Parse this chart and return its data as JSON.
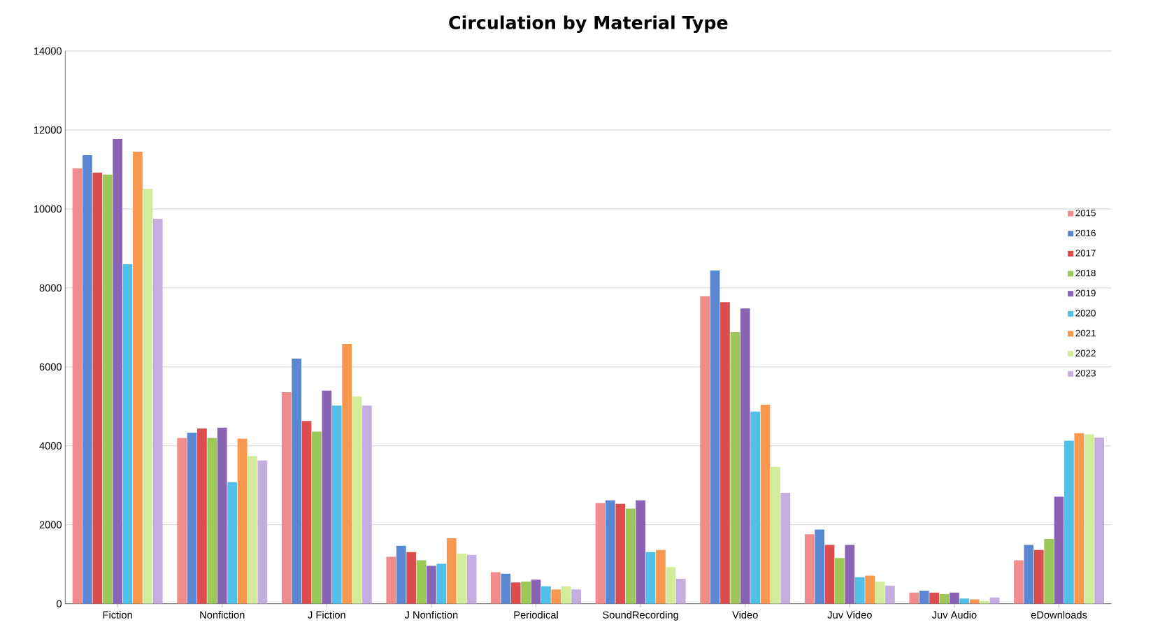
{
  "chart_data": {
    "type": "bar",
    "title": "Circulation by Material Type",
    "categories": [
      "Fiction",
      "Nonfiction",
      "J Fiction",
      "J Nonfiction",
      "Periodical",
      "SoundRecording",
      "Video",
      "Juv Video",
      "Juv Audio",
      "eDownloads"
    ],
    "series": [
      {
        "name": "2015",
        "color": "#f08c8c",
        "values": [
          11030,
          4200,
          5360,
          1190,
          800,
          2550,
          7790,
          1760,
          280,
          1100
        ]
      },
      {
        "name": "2016",
        "color": "#5a86d2",
        "values": [
          11360,
          4330,
          6210,
          1470,
          760,
          2620,
          8440,
          1880,
          330,
          1490
        ]
      },
      {
        "name": "2017",
        "color": "#dc4e4e",
        "values": [
          10920,
          4440,
          4630,
          1310,
          540,
          2530,
          7640,
          1490,
          280,
          1360
        ]
      },
      {
        "name": "2018",
        "color": "#9cc85a",
        "values": [
          10870,
          4200,
          4360,
          1100,
          560,
          2410,
          6880,
          1160,
          240,
          1640
        ]
      },
      {
        "name": "2019",
        "color": "#8a64b4",
        "values": [
          11770,
          4460,
          5400,
          960,
          610,
          2620,
          7480,
          1490,
          280,
          2710
        ]
      },
      {
        "name": "2020",
        "color": "#50c0e6",
        "values": [
          8600,
          3080,
          5020,
          1010,
          440,
          1310,
          4870,
          670,
          130,
          4130
        ]
      },
      {
        "name": "2021",
        "color": "#f7984e",
        "values": [
          11450,
          4180,
          6580,
          1660,
          360,
          1360,
          5040,
          710,
          110,
          4320
        ]
      },
      {
        "name": "2022",
        "color": "#d2ec9c",
        "values": [
          10510,
          3740,
          5250,
          1270,
          440,
          930,
          3470,
          560,
          70,
          4290
        ]
      },
      {
        "name": "2023",
        "color": "#c4aee0",
        "values": [
          9750,
          3630,
          5020,
          1240,
          360,
          630,
          2810,
          460,
          160,
          4210
        ]
      }
    ],
    "ylim": [
      0,
      14000
    ],
    "yticks": [
      0,
      2000,
      4000,
      6000,
      8000,
      10000,
      12000,
      14000
    ],
    "grid": "y",
    "legend": "right"
  }
}
